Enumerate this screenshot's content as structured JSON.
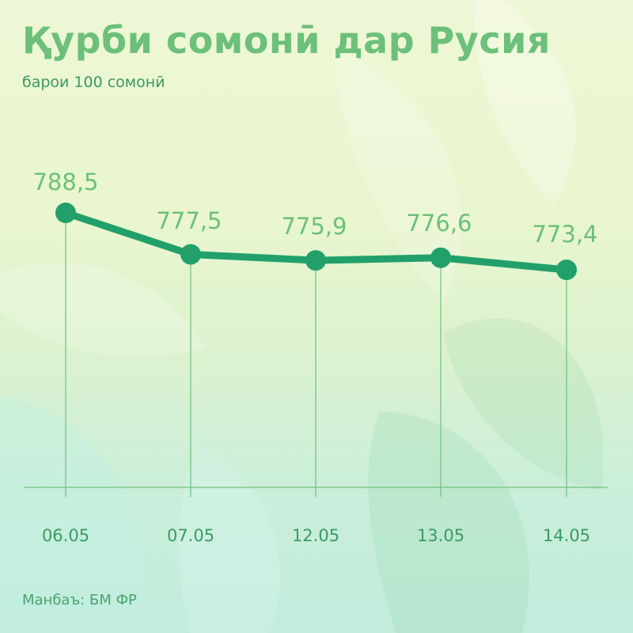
{
  "title": "Қурби сомонӣ дар Русия",
  "subtitle": "барои 100 сомонӣ",
  "source": "Манбаъ: БМ ФР",
  "colors": {
    "line": "#22a06b",
    "accent_text": "#6cc07a",
    "tick_text": "#3b9a62",
    "grid": "#6dc27c"
  },
  "chart_data": {
    "type": "line",
    "categories": [
      "06.05",
      "07.05",
      "12.05",
      "13.05",
      "14.05"
    ],
    "values": [
      788.5,
      777.5,
      775.9,
      776.6,
      773.4
    ],
    "value_labels": [
      "788,5",
      "777,5",
      "775,9",
      "776,6",
      "773,4"
    ],
    "title": "Қурби сомонӣ дар Русия",
    "subtitle": "барои 100 сомонӣ",
    "xlabel": "",
    "ylabel": "",
    "grid": false,
    "legend": "none"
  }
}
